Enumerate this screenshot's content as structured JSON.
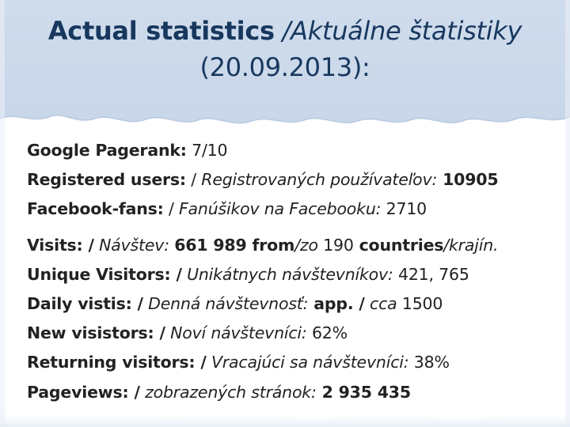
{
  "title": {
    "en": "Actual statistics",
    "sk": "/Aktuálne štatistiky",
    "date": "(20.09.2013):"
  },
  "stats_group1": [
    {
      "label": "Google Pagerank:",
      "value": " 7/10"
    },
    {
      "label": "Registered users:",
      "sep": " / ",
      "sk": "Registrovaných používateľov:",
      "value": " 10905"
    },
    {
      "label": "Facebook-fans:",
      "sep": " / ",
      "sk": "Fanúšikov na Facebooku:",
      "value": " 2710"
    }
  ],
  "visits": {
    "label": "Visits: /",
    "sk": " Návštev: ",
    "value": " 661 989",
    "from": " from",
    "from_sk": "/zo",
    "count": " 190",
    "countries": " countries",
    "countries_sk": "/krajín."
  },
  "stats_group2": [
    {
      "label": "Unique Visitors: /",
      "sk": " Unikátnych návštevníkov:",
      "value": " 421, 765"
    },
    {
      "label": "Daily vistis: /",
      "sk": " Denná návštevnosť:",
      "app": " app. /",
      "app_sk": " cca",
      "value": " 1500"
    },
    {
      "label": "New visistors: /",
      "sk": " Noví návštevníci:",
      "value": " 62%"
    },
    {
      "label": "Returning visitors: /",
      "sk": " Vracajúci sa návštevníci:",
      "value": " 38%"
    },
    {
      "label": "Pageviews: /",
      "sk": " zobrazených stránok:",
      "value": " 2 935 435"
    }
  ]
}
